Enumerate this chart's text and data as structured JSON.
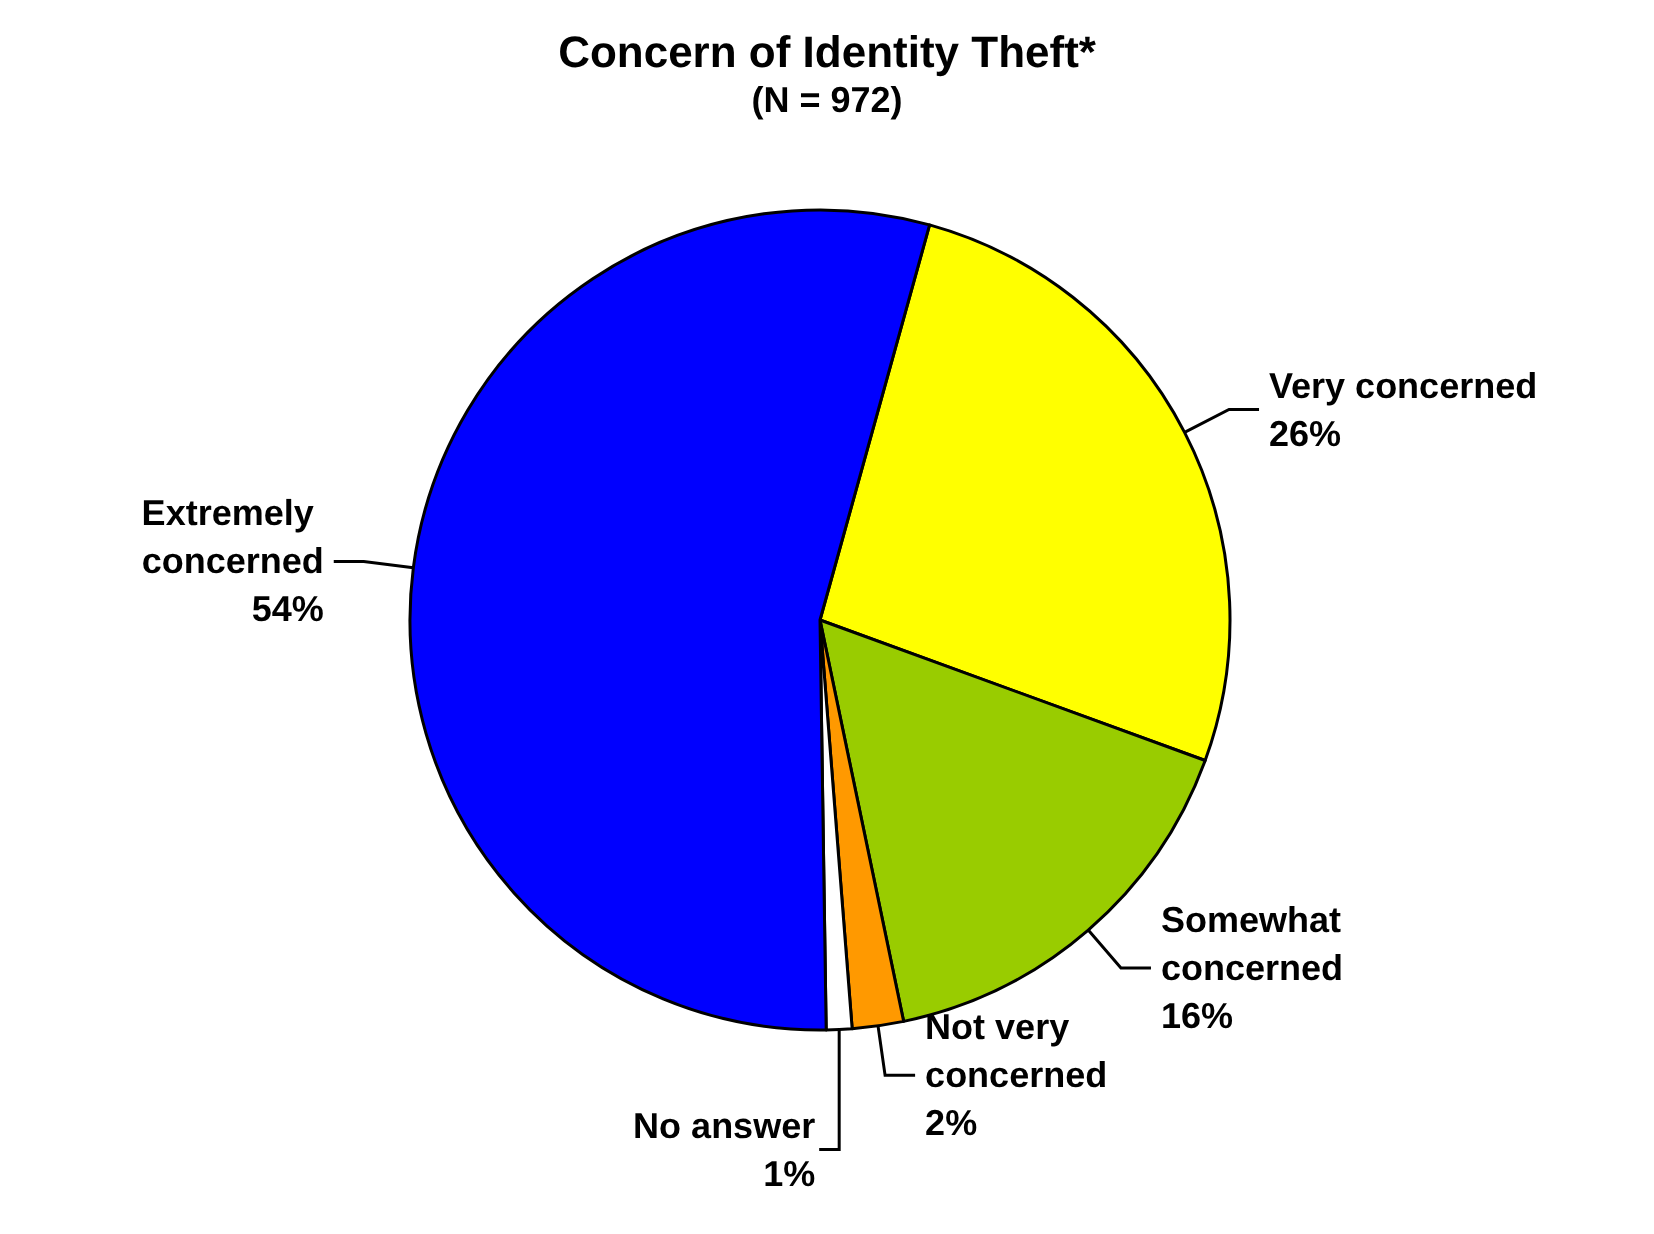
{
  "chart_data": {
    "type": "pie",
    "title": "Concern of Identity Theft*",
    "subtitle": "(N = 972)",
    "categories": [
      "Very concerned",
      "Somewhat concerned",
      "Not very concerned",
      "No answer",
      "Extremely concerned"
    ],
    "values": [
      26,
      16,
      2,
      1,
      54
    ],
    "colors": [
      "#ffff00",
      "#99cc00",
      "#ff9900",
      "#ffffff",
      "#0000ff"
    ],
    "value_labels": [
      "26%",
      "16%",
      "2%",
      "1%",
      "54%"
    ],
    "legend": false
  }
}
